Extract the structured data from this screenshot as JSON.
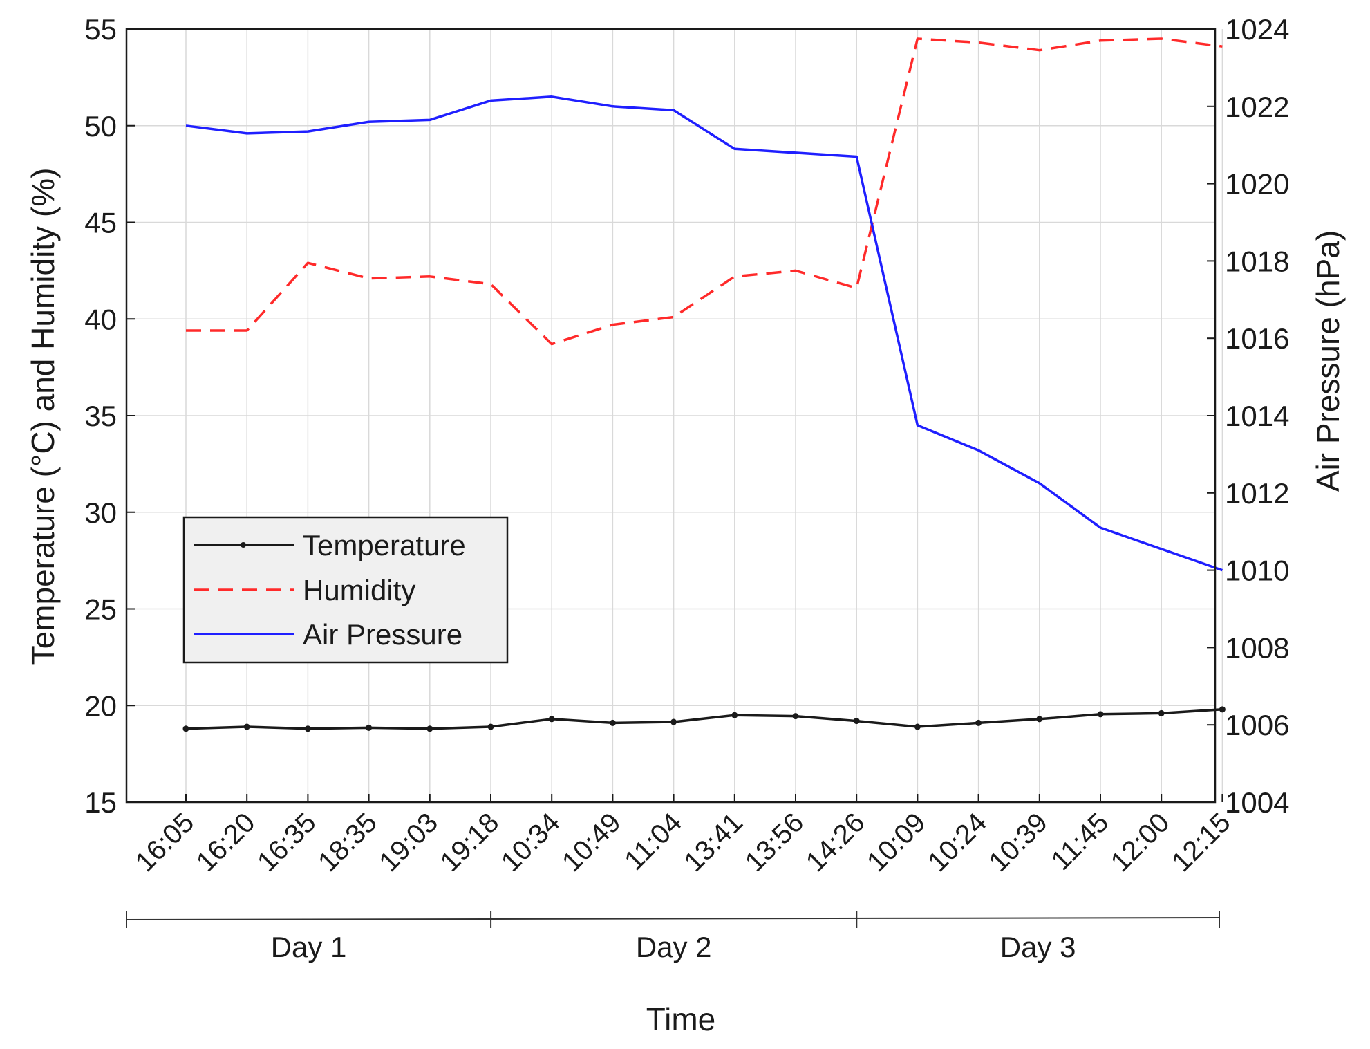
{
  "chart_data": {
    "type": "line",
    "title": "",
    "xlabel": "Time",
    "ylabel_left": "Temperature (°C) and Humidity (%)",
    "ylabel_right": "Air Pressure (hPa)",
    "categories": [
      "16:05",
      "16:20",
      "16:35",
      "18:35",
      "19:03",
      "19:18",
      "10:34",
      "10:49",
      "11:04",
      "13:41",
      "13:56",
      "14:26",
      "10:09",
      "10:24",
      "10:39",
      "11:45",
      "12:00",
      "12:15"
    ],
    "ylim_left": [
      15,
      55
    ],
    "yticks_left": [
      "15",
      "20",
      "25",
      "30",
      "35",
      "40",
      "45",
      "50",
      "55"
    ],
    "ylim_right": [
      1004,
      1024
    ],
    "yticks_right": [
      "1004",
      "1006",
      "1008",
      "1010",
      "1012",
      "1014",
      "1016",
      "1018",
      "1020",
      "1022",
      "1024"
    ],
    "grid": true,
    "day_groups": [
      {
        "label": "Day 1",
        "start": 0,
        "end": 5
      },
      {
        "label": "Day 2",
        "start": 6,
        "end": 11
      },
      {
        "label": "Day 3",
        "start": 12,
        "end": 17
      }
    ],
    "legend_position": "lower-left",
    "series": [
      {
        "name": "Temperature",
        "axis": "left",
        "color": "#1a1a1a",
        "style": "solid-dot",
        "values": [
          18.8,
          18.9,
          18.8,
          18.85,
          18.8,
          18.9,
          19.3,
          19.1,
          19.15,
          19.5,
          19.45,
          19.2,
          18.9,
          19.1,
          19.3,
          19.55,
          19.6,
          19.8
        ]
      },
      {
        "name": "Humidity",
        "axis": "left",
        "color": "#ff2a2a",
        "style": "dashed",
        "values": [
          39.4,
          39.4,
          42.9,
          42.1,
          42.2,
          41.8,
          38.7,
          39.7,
          40.1,
          42.2,
          42.5,
          41.6,
          54.5,
          54.3,
          53.9,
          54.4,
          54.5,
          54.1
        ]
      },
      {
        "name": "Air Pressure",
        "axis": "right",
        "color": "#1f1fff",
        "style": "solid",
        "values": [
          1021.5,
          1021.3,
          1021.35,
          1021.6,
          1021.65,
          1022.15,
          1022.25,
          1022.0,
          1021.9,
          1020.9,
          1020.8,
          1020.7,
          1013.75,
          1013.1,
          1012.25,
          1011.1,
          1010.55,
          1010.0
        ]
      }
    ]
  }
}
